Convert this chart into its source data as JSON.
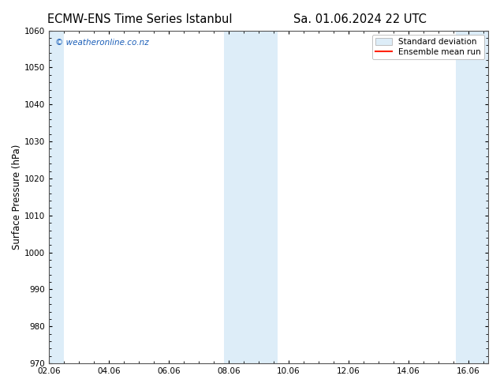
{
  "title_left": "ECMW-ENS Time Series Istanbul",
  "title_right": "Sa. 01.06.2024 22 UTC",
  "ylabel": "Surface Pressure (hPa)",
  "ylim": [
    970,
    1060
  ],
  "yticks": [
    970,
    980,
    990,
    1000,
    1010,
    1020,
    1030,
    1040,
    1050,
    1060
  ],
  "xlim": [
    0.0,
    14.667
  ],
  "xtick_labels": [
    "02.06",
    "04.06",
    "06.06",
    "08.06",
    "10.06",
    "12.06",
    "14.06",
    "16.06"
  ],
  "xtick_positions": [
    0,
    2,
    4,
    6,
    8,
    10,
    12,
    14
  ],
  "shaded_bands": [
    {
      "x_start": 0.0,
      "x_end": 0.5
    },
    {
      "x_start": 5.85,
      "x_end": 7.65
    },
    {
      "x_start": 13.6,
      "x_end": 14.667
    }
  ],
  "shade_color": "#ddedf8",
  "watermark": "© weatheronline.co.nz",
  "watermark_color": "#1a5eb8",
  "legend_std_label": "Standard deviation",
  "legend_mean_label": "Ensemble mean run",
  "legend_std_color": "#ddedf8",
  "legend_std_edge": "#aaaaaa",
  "legend_mean_color": "#ff2200",
  "bg_color": "#ffffff",
  "spine_color": "#555555",
  "title_fontsize": 10.5,
  "label_fontsize": 8.5,
  "tick_fontsize": 7.5,
  "watermark_fontsize": 7.5,
  "legend_fontsize": 7.5
}
